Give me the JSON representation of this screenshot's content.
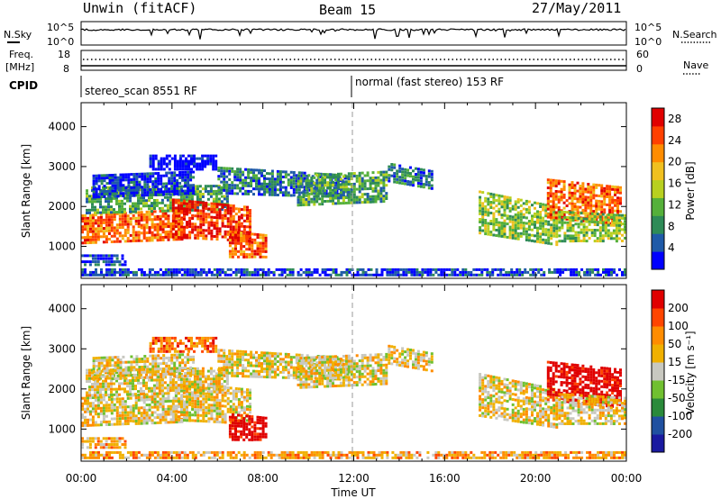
{
  "header": {
    "title": "Unwin (fitACF)",
    "beam": "Beam 15",
    "date": "27/May/2011"
  },
  "side_labels": {
    "nsky": "N.Sky",
    "freq": "Freq.",
    "freq_unit": "[MHz]",
    "cpid": "CPID",
    "nsearch": "N.Search",
    "nave": "Nave"
  },
  "noise_axis": {
    "left_top": "10^5",
    "left_bottom": "10^0",
    "right_top": "10^5",
    "right_bottom": "10^0"
  },
  "freq_axis": {
    "left_ticks": [
      "18",
      "8"
    ],
    "right_ticks": [
      "60",
      "0"
    ]
  },
  "cpid": {
    "segments": [
      {
        "label": "stereo_scan 8551 RF",
        "start_hour": 0
      },
      {
        "label": "normal (fast stereo) 153 RF",
        "start_hour": 12
      }
    ]
  },
  "colors": {
    "power": [
      "#0000ff",
      "#1f5aa8",
      "#2e8b57",
      "#55b03a",
      "#b8d020",
      "#f0c020",
      "#ff8c00",
      "#ff4000",
      "#e00000"
    ],
    "velocity": [
      "#e00000",
      "#ff4500",
      "#ff8c00",
      "#f0b000",
      "#c8c8c0",
      "#70c030",
      "#2a8a3a",
      "#2050a0",
      "#1a1aa0"
    ]
  },
  "chart_data": {
    "type": "heatmap",
    "x_range_hours": [
      0,
      24
    ],
    "time_tick_labels": [
      "00:00",
      "04:00",
      "08:00",
      "12:00",
      "16:00",
      "20:00",
      "00:00"
    ],
    "xlabel": "Time UT",
    "ylabel": "Slant Range [km]",
    "ylim_km": [
      200,
      4600
    ],
    "range_tick_labels": [
      "1000",
      "2000",
      "3000",
      "4000"
    ],
    "panels": [
      {
        "quantity": "power",
        "colorbar_label": "Power [dB]",
        "colorbar_ticks": [
          "4",
          "8",
          "12",
          "16",
          "20",
          "24",
          "28"
        ],
        "colorbar_range": [
          0,
          30
        ]
      },
      {
        "quantity": "velocity",
        "colorbar_label": "Velocity [m s⁻¹]",
        "colorbar_ticks": [
          "200",
          "100",
          "50",
          "15",
          "-15",
          "-50",
          "-100",
          "-200"
        ]
      }
    ]
  }
}
